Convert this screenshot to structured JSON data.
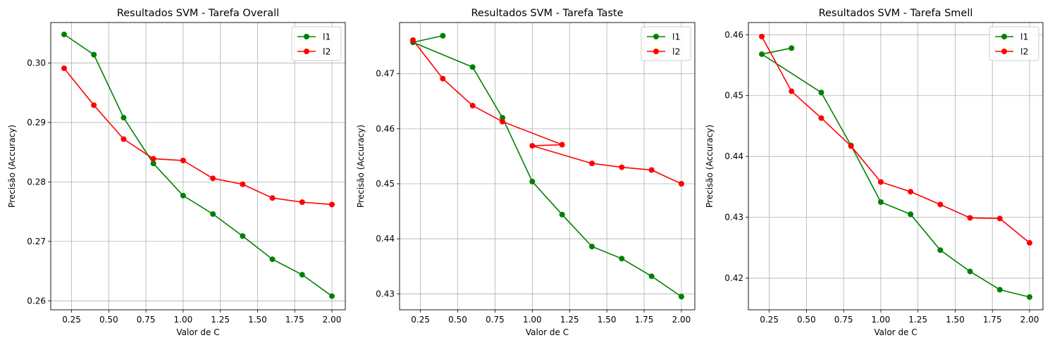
{
  "chart_data": [
    {
      "type": "line",
      "title": "Resultados SVM - Tarefa Overall",
      "xlabel": "Valor de C",
      "ylabel": "Precisão (Accuracy)",
      "xlim": [
        0.11,
        2.09
      ],
      "ylim": [
        0.2585,
        0.3068
      ],
      "xticks": [
        0.25,
        0.5,
        0.75,
        1.0,
        1.25,
        1.5,
        1.75,
        2.0
      ],
      "xtick_labels": [
        "0.25",
        "0.50",
        "0.75",
        "1.00",
        "1.25",
        "1.50",
        "1.75",
        "2.00"
      ],
      "yticks": [
        0.26,
        0.27,
        0.28,
        0.29,
        0.3
      ],
      "ytick_labels": [
        "0.26",
        "0.27",
        "0.28",
        "0.29",
        "0.30"
      ],
      "grid": true,
      "legend_position": "top-right",
      "series": [
        {
          "name": "l1",
          "color": "#008000",
          "points": [
            [
              0.2,
              0.3048
            ],
            [
              0.4,
              0.3014
            ],
            [
              0.6,
              0.2908
            ],
            [
              0.8,
              0.2831
            ],
            [
              1.0,
              0.2777
            ],
            [
              1.2,
              0.2746
            ],
            [
              1.4,
              0.2709
            ],
            [
              1.6,
              0.267
            ],
            [
              1.8,
              0.2644
            ],
            [
              2.0,
              0.2608
            ]
          ]
        },
        {
          "name": "l2",
          "color": "#ff0000",
          "points": [
            [
              0.2,
              0.2991
            ],
            [
              0.4,
              0.2929
            ],
            [
              0.6,
              0.2872
            ],
            [
              0.8,
              0.2839
            ],
            [
              1.0,
              0.2836
            ],
            [
              1.2,
              0.2806
            ],
            [
              1.4,
              0.2796
            ],
            [
              1.6,
              0.2773
            ],
            [
              1.8,
              0.2766
            ],
            [
              2.0,
              0.2762
            ]
          ]
        }
      ]
    },
    {
      "type": "line",
      "title": "Resultados SVM - Tarefa Taste",
      "xlabel": "Valor de C",
      "ylabel": "Precisão (Accuracy)",
      "xlim": [
        0.11,
        2.09
      ],
      "ylim": [
        0.4271,
        0.4793
      ],
      "xticks": [
        0.25,
        0.5,
        0.75,
        1.0,
        1.25,
        1.5,
        1.75,
        2.0
      ],
      "xtick_labels": [
        "0.25",
        "0.50",
        "0.75",
        "1.00",
        "1.25",
        "1.50",
        "1.75",
        "2.00"
      ],
      "yticks": [
        0.43,
        0.44,
        0.45,
        0.46,
        0.47
      ],
      "ytick_labels": [
        "0.43",
        "0.44",
        "0.45",
        "0.46",
        "0.47"
      ],
      "grid": true,
      "legend_position": "top-right",
      "series": [
        {
          "name": "l1",
          "color": "#008000",
          "points": [
            [
              0.4,
              0.4769
            ],
            [
              0.2,
              0.4757
            ],
            [
              0.6,
              0.4712
            ],
            [
              0.8,
              0.462
            ],
            [
              1.0,
              0.4504
            ],
            [
              1.2,
              0.4444
            ],
            [
              1.4,
              0.4386
            ],
            [
              1.6,
              0.4364
            ],
            [
              1.8,
              0.4332
            ],
            [
              2.0,
              0.4295
            ]
          ]
        },
        {
          "name": "l2",
          "color": "#ff0000",
          "points": [
            [
              0.2,
              0.4761
            ],
            [
              0.4,
              0.4691
            ],
            [
              0.6,
              0.4642
            ],
            [
              0.8,
              0.4613
            ],
            [
              1.2,
              0.4571
            ],
            [
              1.0,
              0.4569
            ],
            [
              1.4,
              0.4537
            ],
            [
              1.6,
              0.453
            ],
            [
              1.8,
              0.4525
            ],
            [
              2.0,
              0.45
            ]
          ]
        }
      ]
    },
    {
      "type": "line",
      "title": "Resultados SVM - Tarefa Smell",
      "xlabel": "Valor de C",
      "ylabel": "Precisão (Accuracy)",
      "xlim": [
        0.11,
        2.09
      ],
      "ylim": [
        0.4148,
        0.462
      ],
      "xticks": [
        0.25,
        0.5,
        0.75,
        1.0,
        1.25,
        1.5,
        1.75,
        2.0
      ],
      "xtick_labels": [
        "0.25",
        "0.50",
        "0.75",
        "1.00",
        "1.25",
        "1.50",
        "1.75",
        "2.00"
      ],
      "yticks": [
        0.42,
        0.43,
        0.44,
        0.45,
        0.46
      ],
      "ytick_labels": [
        "0.42",
        "0.43",
        "0.44",
        "0.45",
        "0.46"
      ],
      "grid": true,
      "legend_position": "top-right",
      "series": [
        {
          "name": "l1",
          "color": "#008000",
          "points": [
            [
              0.4,
              0.4578
            ],
            [
              0.2,
              0.4568
            ],
            [
              0.6,
              0.4505
            ],
            [
              0.8,
              0.4418
            ],
            [
              1.0,
              0.4325
            ],
            [
              1.2,
              0.4305
            ],
            [
              1.4,
              0.4246
            ],
            [
              1.6,
              0.4211
            ],
            [
              1.8,
              0.4181
            ],
            [
              2.0,
              0.4169
            ]
          ]
        },
        {
          "name": "l2",
          "color": "#ff0000",
          "points": [
            [
              0.2,
              0.4597
            ],
            [
              0.4,
              0.4507
            ],
            [
              0.6,
              0.4463
            ],
            [
              0.8,
              0.4417
            ],
            [
              1.0,
              0.4358
            ],
            [
              1.2,
              0.4342
            ],
            [
              1.4,
              0.4321
            ],
            [
              1.6,
              0.4299
            ],
            [
              1.8,
              0.4298
            ],
            [
              2.0,
              0.4258
            ]
          ]
        }
      ]
    }
  ]
}
